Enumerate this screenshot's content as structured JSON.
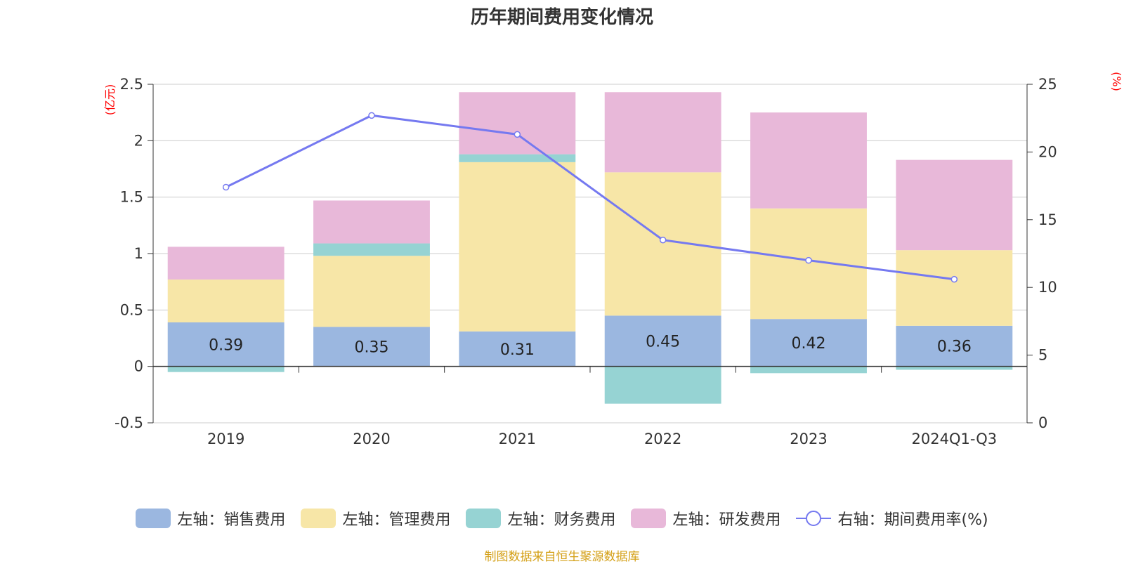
{
  "source_note": "制图数据来自恒生聚源数据库",
  "chart_data": {
    "type": "bar",
    "stacked": true,
    "title": "历年期间费用变化情况",
    "left_axis_unit": "(亿元)",
    "right_axis_unit": "(%)",
    "categories": [
      "2019",
      "2020",
      "2021",
      "2022",
      "2023",
      "2024Q1-Q3"
    ],
    "y_left": {
      "min": -0.5,
      "max": 2.5,
      "ticks": [
        -0.5,
        0,
        0.5,
        1,
        1.5,
        2,
        2.5
      ],
      "tick_labels": [
        "-0.5",
        "0",
        "0.5",
        "1",
        "1.5",
        "2",
        "2.5"
      ]
    },
    "y_right": {
      "min": 0,
      "max": 25,
      "ticks": [
        0,
        5,
        10,
        15,
        20,
        25
      ],
      "tick_labels": [
        "0",
        "5",
        "10",
        "15",
        "20",
        "25"
      ]
    },
    "grid": true,
    "legend_position": "bottom",
    "series": [
      {
        "name": "左轴：销售费用",
        "axis": "left",
        "color": "#9bb7e0",
        "values": [
          0.39,
          0.35,
          0.31,
          0.45,
          0.42,
          0.36
        ],
        "labels": [
          "0.39",
          "0.35",
          "0.31",
          "0.45",
          "0.42",
          "0.36"
        ]
      },
      {
        "name": "左轴：管理费用",
        "axis": "left",
        "color": "#f7e6a7",
        "values": [
          0.38,
          0.63,
          1.5,
          1.27,
          0.98,
          0.67
        ]
      },
      {
        "name": "左轴：财务费用",
        "axis": "left",
        "color": "#96d3d3",
        "values": [
          -0.05,
          0.11,
          0.07,
          -0.33,
          -0.06,
          -0.03
        ]
      },
      {
        "name": "左轴：研发费用",
        "axis": "left",
        "color": "#e8b8d9",
        "values": [
          0.29,
          0.38,
          0.55,
          0.71,
          0.85,
          0.8
        ]
      },
      {
        "name": "右轴：期间费用率(%)",
        "axis": "right",
        "type": "line",
        "color": "#7579f0",
        "values": [
          17.4,
          22.7,
          21.3,
          13.5,
          12.0,
          10.6
        ]
      }
    ]
  }
}
